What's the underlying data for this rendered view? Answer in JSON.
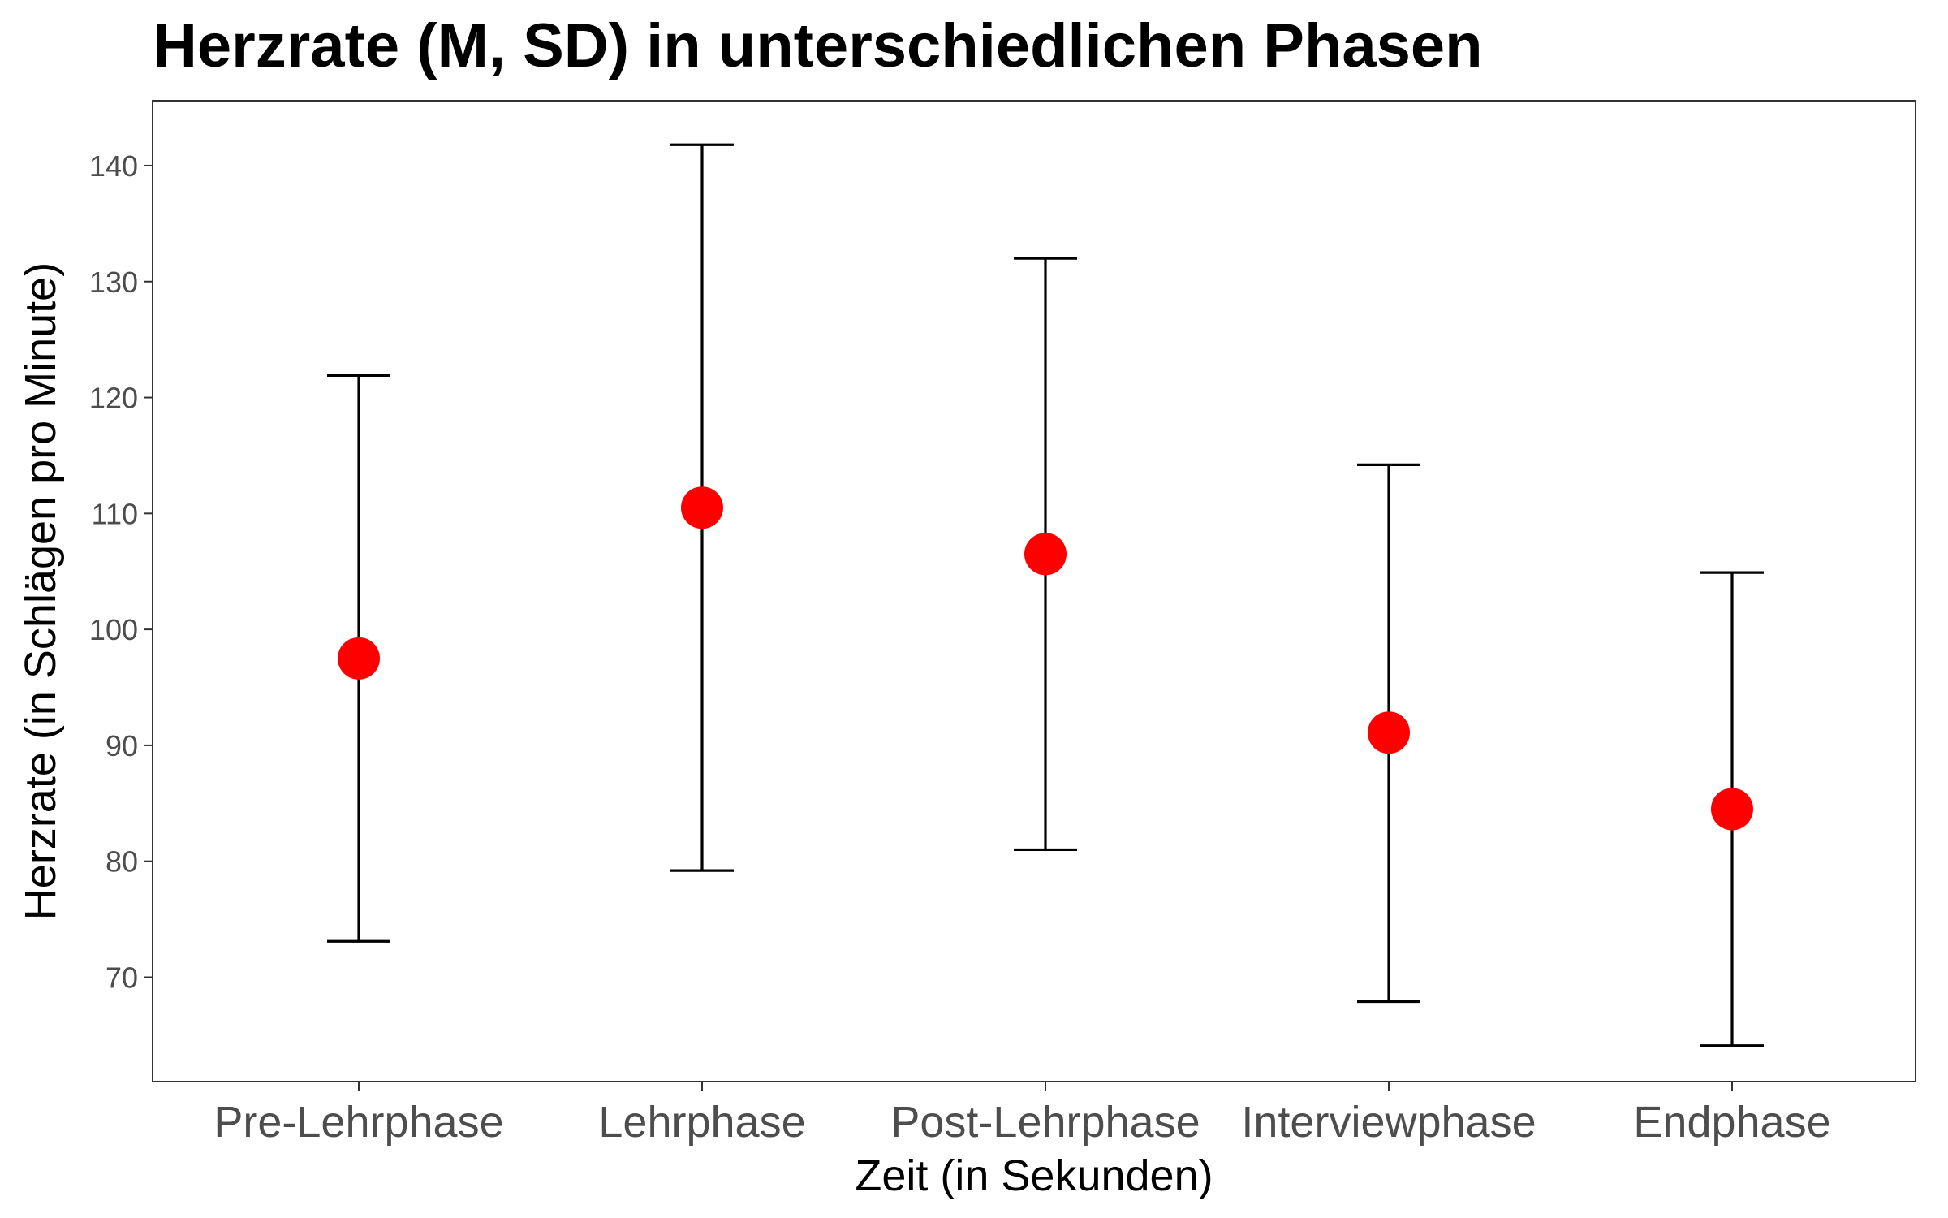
{
  "chart_data": {
    "type": "errorbar",
    "title": "Herzrate (M, SD) in unterschiedlichen Phasen",
    "xlabel": "Zeit (in Sekunden)",
    "ylabel": "Herzrate (in Schlägen pro Minute)",
    "categories": [
      "Pre-Lehrphase",
      "Lehrphase",
      "Post-Lehrphase",
      "Interviewphase",
      "Endphase"
    ],
    "mean": [
      97.5,
      110.5,
      106.5,
      91.1,
      84.5
    ],
    "lower": [
      73.1,
      79.2,
      81.0,
      67.9,
      64.1
    ],
    "upper": [
      121.9,
      141.8,
      132.0,
      114.2,
      104.9
    ],
    "y_ticks": [
      70,
      80,
      90,
      100,
      110,
      120,
      130,
      140
    ],
    "ylim": [
      61.0,
      145.6
    ],
    "grid": false,
    "legend": "none",
    "colors": {
      "point": "#ff0000",
      "errorbar": "#000000",
      "panel_border": "#333333",
      "tick_text": "#4d4d4d",
      "text": "#000000"
    }
  }
}
